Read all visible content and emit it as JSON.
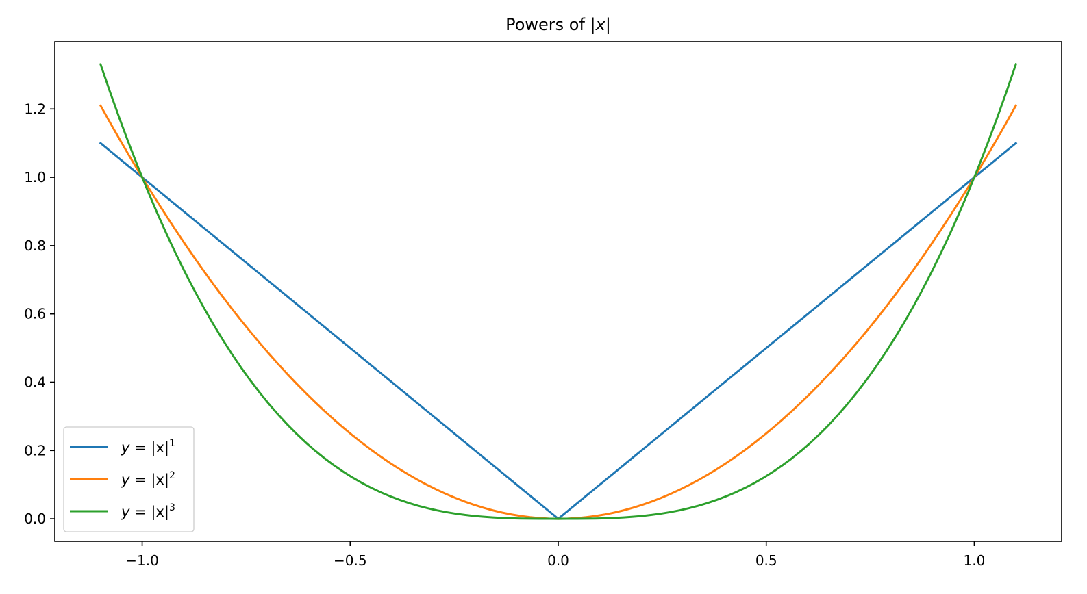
{
  "chart_data": {
    "type": "line",
    "title_prefix": "Powers of ",
    "title_math": "|x|",
    "xlabel": "",
    "ylabel": "",
    "xlim": [
      -1.21,
      1.21
    ],
    "ylim": [
      -0.066,
      1.397
    ],
    "x_ticks": [
      -1.0,
      -0.5,
      0.0,
      0.5,
      1.0
    ],
    "x_tick_labels": [
      "−1.0",
      "−0.5",
      "0.0",
      "0.5",
      "1.0"
    ],
    "y_ticks": [
      0.0,
      0.2,
      0.4,
      0.6,
      0.8,
      1.0,
      1.2
    ],
    "y_tick_labels": [
      "0.0",
      "0.2",
      "0.4",
      "0.6",
      "0.8",
      "1.0",
      "1.2"
    ],
    "x_domain": [
      -1.1,
      1.1
    ],
    "grid": false,
    "legend_position": "lower-left",
    "series": [
      {
        "name": "y = |x|^1",
        "legend_base": "= |x|",
        "legend_exp": "1",
        "power": 1,
        "color": "#1f77b4"
      },
      {
        "name": "y = |x|^2",
        "legend_base": "= |x|",
        "legend_exp": "2",
        "power": 2,
        "color": "#ff7f0e"
      },
      {
        "name": "y = |x|^3",
        "legend_base": "= |x|",
        "legend_exp": "3",
        "power": 3,
        "color": "#2ca02c"
      }
    ],
    "sampling_note_removed": true
  }
}
